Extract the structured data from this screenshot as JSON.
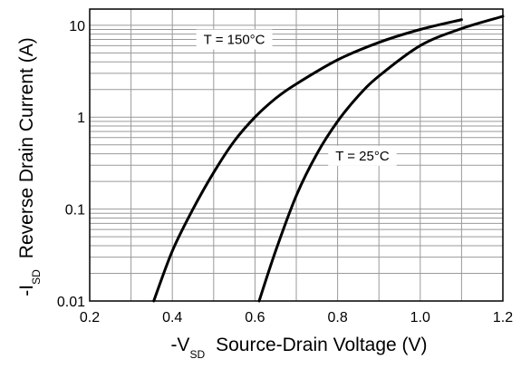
{
  "chart_data": {
    "type": "line",
    "title": "",
    "xlabel": {
      "prefix": "-V",
      "sub": "SD",
      "text": "Source-Drain Voltage (V)"
    },
    "ylabel": {
      "prefix": "-I",
      "sub": "SD",
      "text": "Reverse Drain Current (A)"
    },
    "x_scale": "linear",
    "y_scale": "log",
    "xlim": [
      0.2,
      1.2
    ],
    "ylim": [
      0.01,
      15
    ],
    "x_ticks": [
      0.2,
      0.4,
      0.6,
      0.8,
      1.0,
      1.2
    ],
    "x_tick_labels": [
      "0.2",
      "0.4",
      "0.6",
      "0.8",
      "1.0",
      "1.2"
    ],
    "y_ticks": [
      0.01,
      0.1,
      1,
      10
    ],
    "y_tick_labels": [
      "0.01",
      "0.1",
      "1",
      "10"
    ],
    "grid": true,
    "series_color": "#000000",
    "series": [
      {
        "label": "T = 150°C",
        "x": [
          0.355,
          0.4,
          0.45,
          0.5,
          0.55,
          0.6,
          0.65,
          0.7,
          0.8,
          0.9,
          1.0,
          1.1
        ],
        "y": [
          0.01,
          0.035,
          0.1,
          0.25,
          0.55,
          1.0,
          1.6,
          2.3,
          4.2,
          6.5,
          9.0,
          11.5
        ]
      },
      {
        "label": "T = 25°C",
        "x": [
          0.61,
          0.65,
          0.7,
          0.75,
          0.8,
          0.85,
          0.9,
          1.0,
          1.1,
          1.2
        ],
        "y": [
          0.01,
          0.035,
          0.14,
          0.4,
          0.9,
          1.7,
          2.8,
          6.0,
          9.2,
          12.5
        ]
      }
    ],
    "annotations": [
      {
        "text": "T = 150°C",
        "x": 0.55,
        "y": 7.0
      },
      {
        "text": "T = 25°C",
        "x": 0.86,
        "y": 0.38
      }
    ]
  }
}
